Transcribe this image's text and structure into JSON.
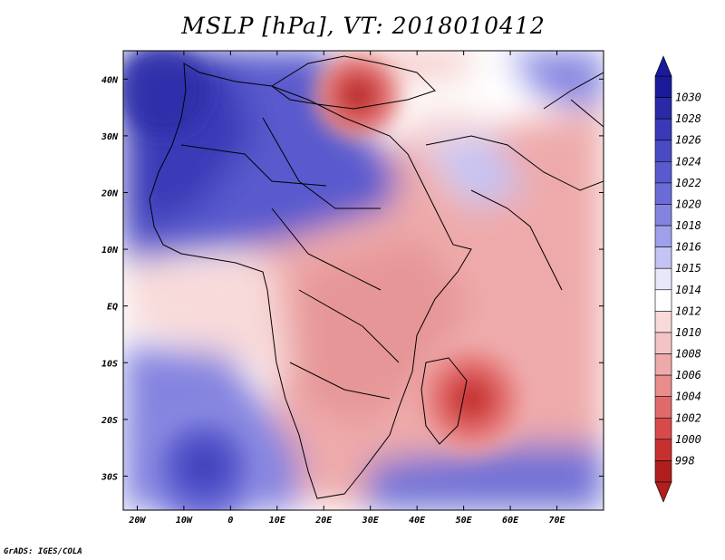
{
  "title": "MSLP [hPa], VT: 2018010412",
  "credit": "GrADS: IGES/COLA",
  "lat_labels": [
    "40N",
    "30N",
    "20N",
    "10N",
    "EQ",
    "10S",
    "20S",
    "30S"
  ],
  "lat_values": [
    40,
    30,
    20,
    10,
    0,
    -10,
    -20,
    -30
  ],
  "lon_labels": [
    "20W",
    "10W",
    "0",
    "10E",
    "20E",
    "30E",
    "40E",
    "50E",
    "60E",
    "70E"
  ],
  "lon_values": [
    -20,
    -10,
    0,
    10,
    20,
    30,
    40,
    50,
    60,
    70
  ],
  "extent": {
    "lon": [
      -23,
      80
    ],
    "lat": [
      -36,
      45
    ]
  },
  "colorbar": {
    "levels": [
      "1030",
      "1028",
      "1026",
      "1024",
      "1022",
      "1020",
      "1018",
      "1016",
      "1015",
      "1014",
      "1012",
      "1010",
      "1008",
      "1006",
      "1004",
      "1002",
      "1000",
      "998"
    ],
    "colors": [
      "#1a1a9a",
      "#2a2aa8",
      "#3a3ab8",
      "#4a4ac2",
      "#5a5ace",
      "#6c6cd8",
      "#8484e0",
      "#a0a0ea",
      "#c4c4f4",
      "#e8e8fa",
      "#ffffff",
      "#f8dada",
      "#f4c4c4",
      "#eeaaaa",
      "#e88c8c",
      "#e06a6a",
      "#d84a4a",
      "#c83030",
      "#b01e1e"
    ]
  },
  "colors": {
    "high": "#1a1a9a",
    "low": "#b01e1e"
  }
}
